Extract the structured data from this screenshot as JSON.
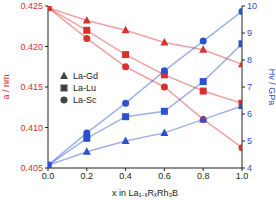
{
  "chart_data": {
    "type": "line",
    "x_label": "x in La₁₋ₓRₓRh₃B",
    "y_label": "a / nm",
    "y2_label": "Hv / GPa",
    "x": [
      0.0,
      0.2,
      0.4,
      0.6,
      0.8,
      1.0
    ],
    "xlim": [
      0,
      1
    ],
    "xticks": [
      {
        "value": 0,
        "label": "0.0"
      },
      0.2,
      0.4,
      0.6,
      0.8,
      {
        "value": 1,
        "label": "1.0"
      }
    ],
    "ylim": [
      0.405,
      0.425
    ],
    "yticks": [
      0.405,
      {
        "value": 0.41,
        "label": "0.410"
      },
      0.415,
      {
        "value": 0.42,
        "label": "0.420"
      },
      0.425
    ],
    "y2lim": [
      4,
      10
    ],
    "y2ticks": [
      4,
      5,
      6,
      7,
      8,
      9,
      10
    ],
    "legend": "left",
    "series": [
      {
        "name": "La-Gd",
        "color": "#d93030",
        "marker": "triangle",
        "values": [
          0.4248,
          0.4232,
          0.422,
          0.4205,
          0.4196,
          0.4178
        ]
      },
      {
        "name": "La-Lu",
        "color": "#d93030",
        "marker": "square",
        "values": [
          0.4248,
          0.422,
          0.419,
          0.4165,
          0.4145,
          0.413
        ]
      },
      {
        "name": "La-Sc",
        "color": "#d93030",
        "marker": "circle",
        "values": [
          0.4248,
          0.421,
          0.4175,
          0.415,
          0.411,
          0.4075
        ]
      },
      {
        "name": "La-Gd",
        "color": "#2b50d0",
        "marker": "triangle",
        "axis": "y2",
        "values": [
          4.1,
          4.6,
          5.0,
          5.3,
          5.8,
          6.3
        ]
      },
      {
        "name": "La-Lu",
        "color": "#2b50d0",
        "marker": "square",
        "axis": "y2",
        "values": [
          4.1,
          5.1,
          5.9,
          6.1,
          7.2,
          8.6
        ]
      },
      {
        "name": "La-Sc",
        "color": "#2b50d0",
        "marker": "circle",
        "axis": "y2",
        "values": [
          4.1,
          5.3,
          6.4,
          7.6,
          8.7,
          9.8
        ]
      }
    ]
  }
}
